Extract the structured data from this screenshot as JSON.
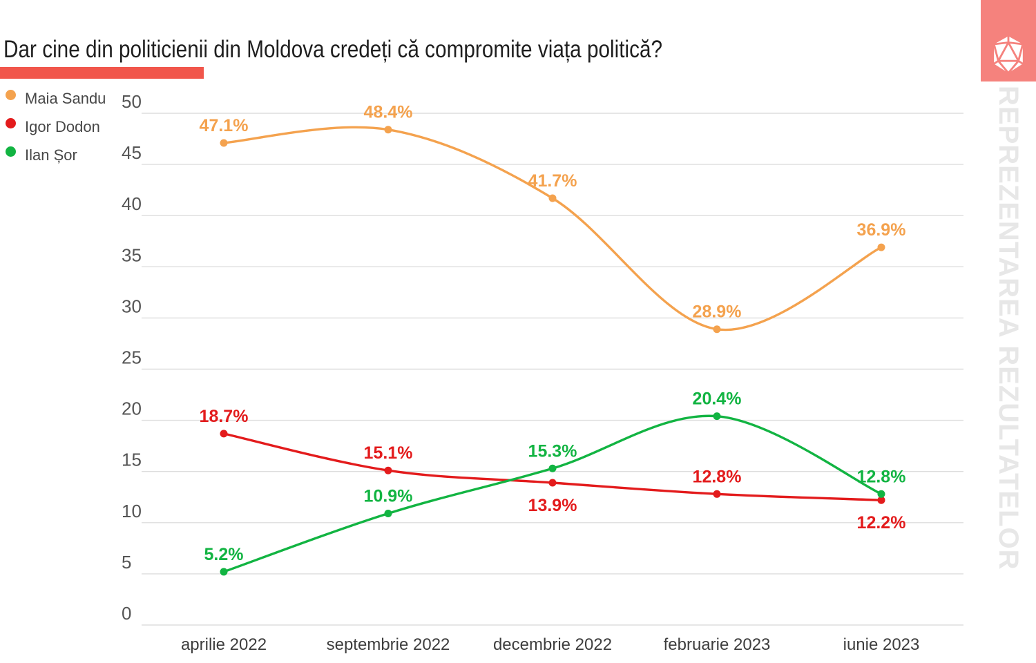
{
  "title": "Dar cine din politicienii din Moldova credeți că compromite viața politică?",
  "watermark": "REPREZENTAREA REZULTATELOR",
  "colors": {
    "accent_bar": "#f1564b",
    "logo_background": "#f5827d",
    "gridline": "#dddddd",
    "axis_text": "#555555",
    "series_maia_sandu": "#f4a24e",
    "series_igor_dodon": "#e31b1c",
    "series_ilan_sor": "#12b442"
  },
  "logo": {
    "icon": "d20-polyhedron-icon"
  },
  "legend": {
    "position": "top-left",
    "items": [
      {
        "label": "Maia Sandu",
        "color": "#f4a24e"
      },
      {
        "label": "Igor Dodon",
        "color": "#e31b1c"
      },
      {
        "label": "Ilan Șor",
        "color": "#12b442"
      }
    ]
  },
  "chart_data": {
    "type": "line",
    "title": "Dar cine din politicienii din Moldova credeți că compromite viața politică?",
    "categories": [
      "aprilie 2022",
      "septembrie 2022",
      "decembrie 2022",
      "februarie 2023",
      "iunie 2023"
    ],
    "series": [
      {
        "name": "Maia Sandu",
        "color": "#f4a24e",
        "values": [
          47.1,
          48.4,
          41.7,
          28.9,
          36.9
        ],
        "label_side": [
          "above",
          "above",
          "above",
          "above",
          "above"
        ]
      },
      {
        "name": "Igor Dodon",
        "color": "#e31b1c",
        "values": [
          18.7,
          15.1,
          13.9,
          12.8,
          12.2
        ],
        "label_side": [
          "above",
          "above",
          "below",
          "above",
          "below"
        ]
      },
      {
        "name": "Ilan Șor",
        "color": "#12b442",
        "values": [
          5.2,
          10.9,
          15.3,
          20.4,
          12.8
        ],
        "label_side": [
          "above",
          "above",
          "above",
          "above",
          "above"
        ]
      }
    ],
    "value_suffix": "%",
    "value_decimals": 1,
    "ylabel": "",
    "xlabel": "",
    "ylim": [
      0,
      50
    ],
    "ytick_step": 5,
    "grid": "horizontal",
    "line_style": "smooth",
    "markers": true,
    "legend_position": "top-left"
  }
}
